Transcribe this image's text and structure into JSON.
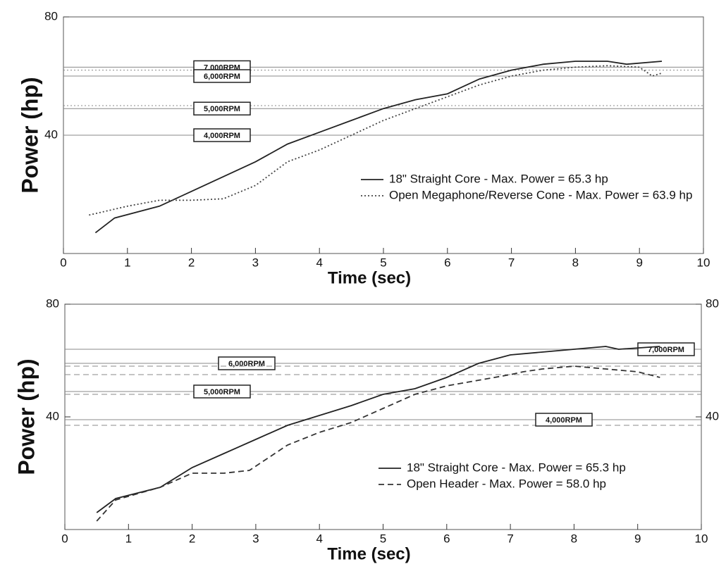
{
  "chart_data": [
    {
      "type": "line",
      "x_label": "Time (sec)",
      "y_label": "Power (hp)",
      "xlim": [
        0,
        10
      ],
      "xticks": [
        0,
        1,
        2,
        3,
        4,
        5,
        6,
        7,
        8,
        9,
        10
      ],
      "ylim": [
        0,
        80
      ],
      "yticks": [
        40,
        80
      ],
      "series": [
        {
          "name": "18\" Straight Core - Max. Power = 65.3 hp",
          "color": "#222222",
          "style": "solid",
          "x": [
            0.5,
            0.8,
            1.5,
            2,
            2.5,
            3,
            3.5,
            4,
            4.5,
            5,
            5.5,
            6,
            6.5,
            7,
            7.5,
            8,
            8.5,
            8.8,
            9.35
          ],
          "values": [
            7,
            12,
            16,
            21,
            26,
            31,
            37,
            41,
            45,
            49,
            52,
            54,
            59,
            62,
            64,
            65,
            65,
            64,
            65
          ]
        },
        {
          "name": "Open Megaphone/Reverse Cone - Max. Power = 63.9 hp",
          "color": "#444444",
          "style": "dotted",
          "x": [
            0.4,
            1,
            1.5,
            2,
            2.5,
            3,
            3.5,
            4,
            4.5,
            5,
            5.5,
            6,
            6.5,
            7,
            7.5,
            8,
            8.5,
            9,
            9.2,
            9.35
          ],
          "values": [
            13,
            16,
            18,
            18,
            18.5,
            23,
            31,
            35,
            40,
            45,
            49,
            53,
            57,
            60,
            62,
            63,
            63.5,
            63,
            60,
            61
          ]
        }
      ],
      "reference_lines": [
        {
          "label": "7,000RPM",
          "values": [
            63,
            62
          ]
        },
        {
          "label": "6,000RPM",
          "values": [
            60
          ]
        },
        {
          "label": "5,000RPM",
          "values": [
            49,
            50
          ]
        },
        {
          "label": "4,000RPM",
          "values": [
            40
          ]
        }
      ]
    },
    {
      "type": "line",
      "x_label": "Time (sec)",
      "y_label": "Power (hp)",
      "xlim": [
        0,
        10
      ],
      "xticks": [
        0,
        1,
        2,
        3,
        4,
        5,
        6,
        7,
        8,
        9,
        10
      ],
      "ylim": [
        0,
        80
      ],
      "yticks": [
        40,
        80
      ],
      "y2lim": [
        0,
        80
      ],
      "y2ticks": [
        40,
        80
      ],
      "series": [
        {
          "name": "18\" Straight Core - Max. Power = 65.3 hp",
          "color": "#222222",
          "style": "solid",
          "x": [
            0.5,
            0.8,
            1.5,
            2,
            2.5,
            3,
            3.5,
            4,
            4.5,
            5,
            5.5,
            6,
            6.5,
            7,
            7.5,
            8,
            8.5,
            8.7,
            9.35
          ],
          "values": [
            6,
            11,
            15,
            22,
            27,
            32,
            37,
            40.5,
            44,
            48,
            50,
            54,
            59,
            62,
            63,
            64,
            65,
            64,
            65
          ]
        },
        {
          "name": "Open Header - Max. Power = 58.0 hp",
          "color": "#333333",
          "style": "dashed",
          "x": [
            0.5,
            0.8,
            1.5,
            2,
            2.5,
            2.9,
            3.5,
            4,
            4.5,
            5,
            5.5,
            6,
            6.5,
            7,
            7.2,
            7.5,
            8,
            8.5,
            9,
            9.35
          ],
          "values": [
            3,
            10.5,
            15,
            20,
            20,
            21,
            30,
            34.5,
            38,
            43,
            48,
            51,
            53,
            55,
            56,
            57,
            58,
            57,
            56,
            54
          ]
        }
      ],
      "reference_lines": [
        {
          "label": "6,000RPM",
          "values": [
            59,
            55
          ]
        },
        {
          "label": "5,000RPM",
          "values": [
            49,
            48
          ]
        },
        {
          "label": "7,000RPM",
          "values": [
            64,
            58
          ]
        },
        {
          "label": "4,000RPM",
          "values": [
            39,
            37
          ]
        }
      ]
    }
  ]
}
